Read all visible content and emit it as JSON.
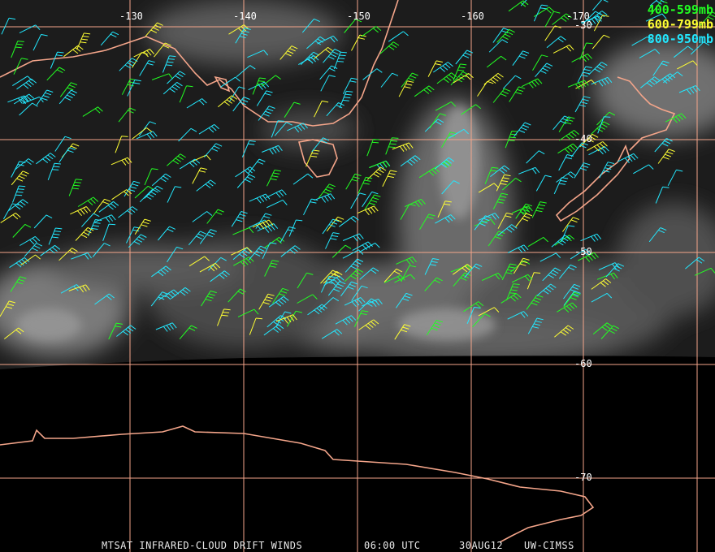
{
  "map": {
    "longitude_labels": [
      "-130",
      "-140",
      "-150",
      "-160",
      "-170"
    ],
    "latitude_labels": [
      "-30",
      "-40",
      "-50",
      "-60",
      "-70"
    ],
    "legend": [
      {
        "label": "400-599mb",
        "color": "#22ff22"
      },
      {
        "label": "600-799mb",
        "color": "#ffff33"
      },
      {
        "label": "800-950mb",
        "color": "#22e8ff"
      }
    ],
    "footer": {
      "product": "MTSAT INFRARED-CLOUD DRIFT WINDS",
      "time": "06:00 UTC",
      "date": "30AUG12",
      "source": "UW-CIMSS"
    }
  }
}
